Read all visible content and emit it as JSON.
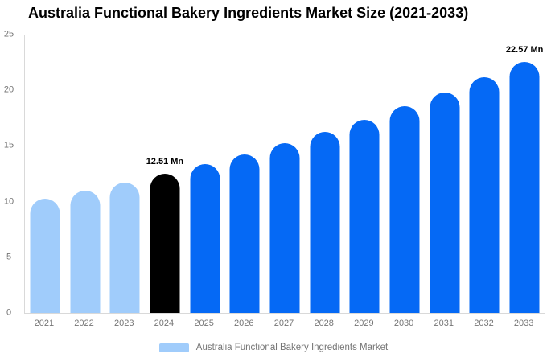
{
  "title": "Australia Functional Bakery Ingredients Market Size (2021-2033)",
  "colors": {
    "historical_bar": "#A0CCFB",
    "base_year_bar": "#000000",
    "forecast_bar": "#0569F5",
    "axis_text": "#757575",
    "axis_line": "#D9D9D9",
    "annotation_text": "#000000",
    "legend_text": "#757575",
    "background": "#FFFFFF"
  },
  "chart_data": {
    "type": "bar",
    "title": "Australia Functional Bakery Ingredients Market Size (2021-2033)",
    "unit": "Mn",
    "categories": [
      "2021",
      "2022",
      "2023",
      "2024",
      "2025",
      "2026",
      "2027",
      "2028",
      "2029",
      "2030",
      "2031",
      "2032",
      "2033"
    ],
    "values": [
      10.27,
      10.97,
      11.71,
      12.51,
      13.36,
      14.27,
      15.24,
      16.27,
      17.37,
      18.55,
      19.81,
      21.15,
      22.57
    ],
    "value_labels": [
      "",
      "",
      "",
      "12.51 Mn",
      "",
      "",
      "",
      "",
      "",
      "",
      "",
      "",
      "22.57 Mn"
    ],
    "segments": [
      "historical",
      "historical",
      "historical",
      "base_year",
      "forecast",
      "forecast",
      "forecast",
      "forecast",
      "forecast",
      "forecast",
      "forecast",
      "forecast",
      "forecast"
    ],
    "xlabel": "",
    "ylabel": "",
    "ylim": [
      0,
      25
    ],
    "y_ticks": [
      0,
      5,
      10,
      15,
      20,
      25
    ],
    "grid": false,
    "legend": {
      "position": "bottom",
      "items": [
        {
          "label": "Australia Functional Bakery Ingredients Market",
          "color": "#A0CCFB"
        }
      ]
    }
  }
}
